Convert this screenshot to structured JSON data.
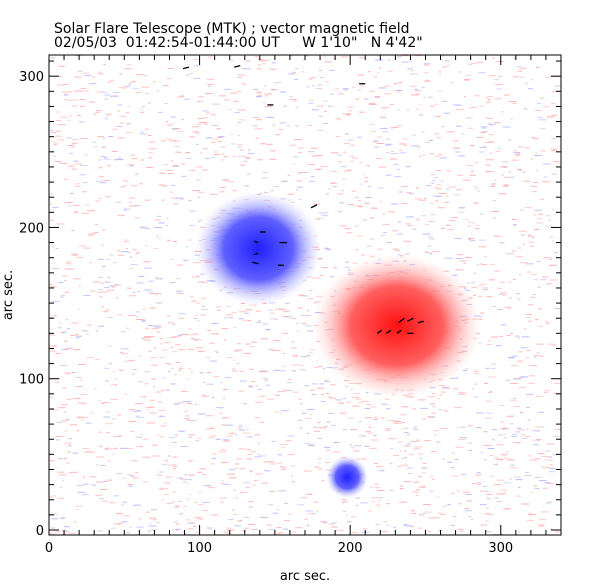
{
  "chart_data": {
    "type": "heatmap",
    "title": "Solar Flare Telescope (MTK) ; vector magnetic field",
    "subtitle": "02/05/03  01:42:54-01:44:00 UT     W 1'10\"   N 4'42\"",
    "xlabel": "arc sec.",
    "ylabel": "arc sec.",
    "xlim": [
      0,
      340
    ],
    "ylim": [
      0,
      314
    ],
    "xticks": [
      "0",
      "100",
      "200",
      "300"
    ],
    "yticks": [
      "0",
      "100",
      "200",
      "300"
    ],
    "colors": {
      "negative": "#3030ff",
      "positive": "#ff2020",
      "arrow": "#000000"
    },
    "regions": [
      {
        "polarity": "negative",
        "x": 139,
        "y": 186,
        "rx": 30,
        "ry": 27
      },
      {
        "polarity": "positive",
        "x": 231,
        "y": 135,
        "rx": 40,
        "ry": 34
      },
      {
        "polarity": "negative",
        "x": 198,
        "y": 35,
        "rx": 10,
        "ry": 10
      }
    ],
    "arrows": [
      [
        93,
        306,
        -4,
        -1
      ],
      [
        127,
        307,
        -4,
        -1
      ],
      [
        145,
        281,
        4,
        0
      ],
      [
        206,
        295,
        4,
        0
      ],
      [
        178,
        215,
        -4,
        -2
      ],
      [
        140,
        197,
        4,
        0
      ],
      [
        153,
        190,
        5,
        0
      ],
      [
        139,
        190,
        -3,
        1
      ],
      [
        139,
        183,
        -3,
        -1
      ],
      [
        139,
        176,
        -4,
        1
      ],
      [
        152,
        175,
        4,
        0
      ],
      [
        232,
        137,
        4,
        3
      ],
      [
        238,
        138,
        4,
        2
      ],
      [
        245,
        137,
        4,
        1
      ],
      [
        218,
        130,
        3,
        2
      ],
      [
        224,
        130,
        3,
        2
      ],
      [
        231,
        130,
        3,
        2
      ],
      [
        238,
        130,
        4,
        0
      ]
    ]
  }
}
